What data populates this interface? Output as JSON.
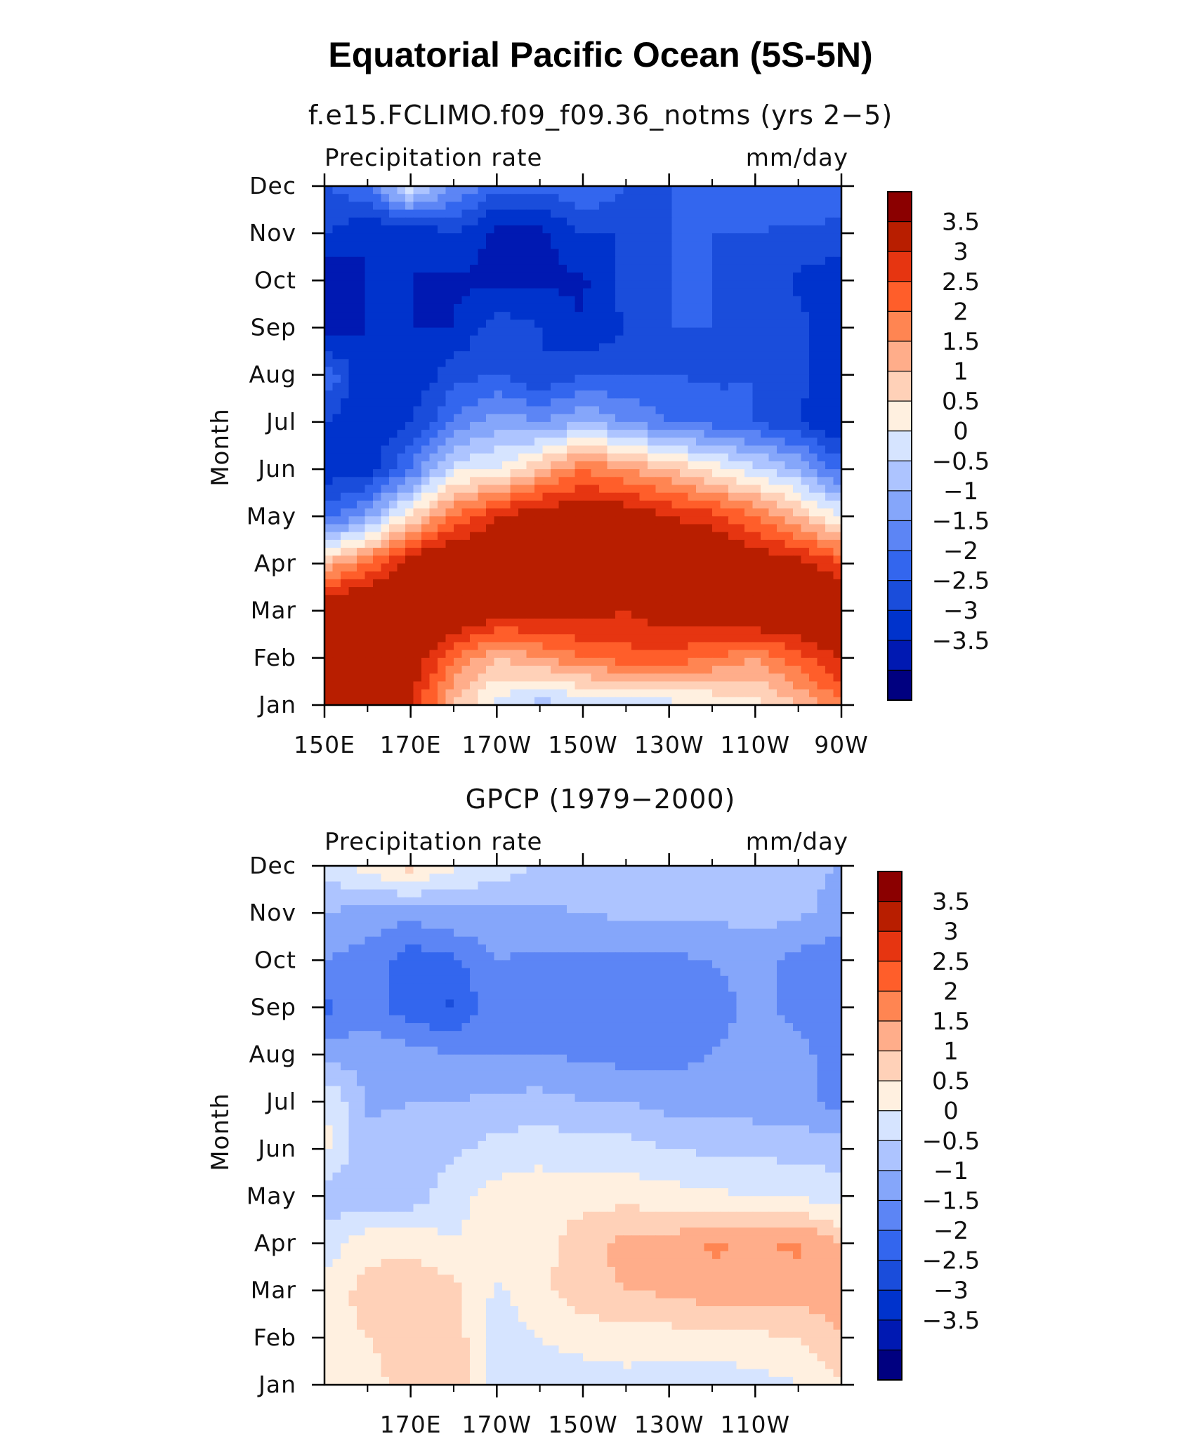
{
  "title": "Equatorial Pacific Ocean (5S-5N)",
  "palette": [
    "#000080",
    "#0019b2",
    "#0033cc",
    "#1a4ddb",
    "#3366ee",
    "#5c85f5",
    "#85a6fa",
    "#adc4ff",
    "#d6e4ff",
    "#fff0e0",
    "#ffd1b8",
    "#ffad8a",
    "#ff8552",
    "#ff5e2a",
    "#e63511",
    "#b81e00",
    "#8b0000"
  ],
  "chart_data": [
    {
      "type": "heatmap",
      "subtitle": "f.e15.FCLIMO.f09_f09.36_notms (yrs 2−5)",
      "left_label": "Precipitation rate",
      "right_label": "mm/day",
      "ylabel": "Month",
      "x_ticks": [
        "150E",
        "170E",
        "170W",
        "150W",
        "130W",
        "110W",
        "90W"
      ],
      "y_ticks": [
        "Jan",
        "Feb",
        "Mar",
        "Apr",
        "May",
        "Jun",
        "Jul",
        "Aug",
        "Sep",
        "Oct",
        "Nov",
        "Dec"
      ],
      "colorbar_labels": [
        "3.5",
        "3",
        "2.5",
        "2",
        "1.5",
        "1",
        "0.5",
        "0",
        "−0.5",
        "−1",
        "−1.5",
        "−2",
        "−2.5",
        "−3",
        "−3.5"
      ],
      "xlim": [
        "150E",
        "90W"
      ],
      "levels": [
        -3.5,
        -3,
        -2.5,
        -2,
        -1.5,
        -1,
        -0.5,
        0,
        0.5,
        1,
        1.5,
        2,
        2.5,
        3,
        3.5
      ],
      "lon": [
        150,
        160,
        170,
        180,
        190,
        200,
        210,
        220,
        230,
        240,
        250,
        260,
        270
      ],
      "values": [
        [
          4.5,
          4.5,
          3.5,
          1.5,
          0.3,
          -0.3,
          0.0,
          0.0,
          0.3,
          0.5,
          0.8,
          1.5,
          2.5
        ],
        [
          4.5,
          4.5,
          4.0,
          2.5,
          1.5,
          2.0,
          2.5,
          2.8,
          2.8,
          2.5,
          2.0,
          2.8,
          3.5
        ],
        [
          4.5,
          4.5,
          4.5,
          4.5,
          4.0,
          3.8,
          3.8,
          3.5,
          4.0,
          4.0,
          4.5,
          4.5,
          4.5
        ],
        [
          1.5,
          2.5,
          4.0,
          4.5,
          4.5,
          4.5,
          4.5,
          4.5,
          4.5,
          4.5,
          4.0,
          3.8,
          3.0
        ],
        [
          -1.8,
          -0.8,
          1.0,
          2.5,
          3.5,
          4.0,
          4.0,
          4.0,
          3.5,
          3.2,
          2.5,
          1.5,
          0.5
        ],
        [
          -2.8,
          -2.8,
          -1.5,
          0.3,
          0.5,
          1.5,
          2.5,
          2.0,
          1.5,
          0.8,
          0.2,
          -0.5,
          -1.8
        ],
        [
          -2.5,
          -3.0,
          -2.5,
          -1.5,
          -0.7,
          -1.0,
          -0.5,
          -1.0,
          -1.5,
          -1.7,
          -2.0,
          -2.5,
          -3.0
        ],
        [
          -1.5,
          -3.0,
          -3.0,
          -2.2,
          -2.0,
          -2.5,
          -2.0,
          -2.0,
          -2.0,
          -2.1,
          -2.0,
          -2.3,
          -3.0
        ],
        [
          -3.5,
          -3.0,
          -3.0,
          -3.0,
          -2.2,
          -2.5,
          -3.0,
          -2.5,
          -2.0,
          -2.0,
          -2.0,
          -2.3,
          -3.0
        ],
        [
          -3.5,
          -3.0,
          -3.0,
          -3.1,
          -3.1,
          -3.1,
          -3.1,
          -2.2,
          -2.0,
          -2.0,
          -2.1,
          -2.6,
          -2.8
        ],
        [
          -2.5,
          -3.0,
          -3.0,
          -2.5,
          -3.2,
          -3.2,
          -2.5,
          -2.5,
          -2.0,
          -2.0,
          -2.0,
          -2.1,
          -2.2
        ],
        [
          -2.0,
          -1.5,
          0.5,
          -1.0,
          -1.8,
          -1.8,
          -1.5,
          -2.0,
          -2.0,
          -2.0,
          -1.7,
          -1.5,
          -1.5
        ]
      ]
    },
    {
      "type": "heatmap",
      "subtitle": "GPCP (1979−2000)",
      "left_label": "Precipitation rate",
      "right_label": "mm/day",
      "ylabel": "Month",
      "x_ticks": [
        "170E",
        "170W",
        "150W",
        "130W",
        "110W"
      ],
      "y_ticks": [
        "Jan",
        "Feb",
        "Mar",
        "Apr",
        "May",
        "Jun",
        "Jul",
        "Aug",
        "Sep",
        "Oct",
        "Nov",
        "Dec"
      ],
      "colorbar_labels": [
        "3.5",
        "3",
        "2.5",
        "2",
        "1.5",
        "1",
        "0.5",
        "0",
        "−0.5",
        "−1",
        "−1.5",
        "−2",
        "−2.5",
        "−3",
        "−3.5"
      ],
      "xlim": [
        "150E",
        "90W"
      ],
      "levels": [
        -3.5,
        -3,
        -2.5,
        -2,
        -1.5,
        -1,
        -0.5,
        0,
        0.5,
        1,
        1.5,
        2,
        2.5,
        3,
        3.5
      ],
      "lon": [
        150,
        160,
        170,
        180,
        190,
        200,
        210,
        220,
        230,
        240,
        250,
        260,
        270
      ],
      "values": [
        [
          0.8,
          0.8,
          1.2,
          1.5,
          0.3,
          0.2,
          0.2,
          0.3,
          0.2,
          0.2,
          0.3,
          0.5,
          1.0
        ],
        [
          0.8,
          1.0,
          1.3,
          1.3,
          0.2,
          0.5,
          0.7,
          0.8,
          0.8,
          0.8,
          0.9,
          1.0,
          1.5
        ],
        [
          0.7,
          1.2,
          1.3,
          1.2,
          0.4,
          0.9,
          1.3,
          1.5,
          1.6,
          1.8,
          1.8,
          1.8,
          1.7
        ],
        [
          0.2,
          0.8,
          0.9,
          0.5,
          0.8,
          0.8,
          1.3,
          1.7,
          1.7,
          2.1,
          1.9,
          2.1,
          1.5
        ],
        [
          -0.3,
          -0.3,
          -0.3,
          0.3,
          0.7,
          0.8,
          0.8,
          0.8,
          0.7,
          0.6,
          0.5,
          0.4,
          0.2
        ],
        [
          0.6,
          -0.3,
          -0.3,
          -0.1,
          0.2,
          0.3,
          0.2,
          0.2,
          0.0,
          -0.1,
          -0.1,
          -0.2,
          -0.2
        ],
        [
          0.6,
          -0.6,
          -0.5,
          -0.5,
          -0.4,
          -0.3,
          -0.5,
          -0.5,
          -0.7,
          -0.7,
          -0.8,
          -0.8,
          -1.2
        ],
        [
          -0.8,
          -0.6,
          -0.8,
          -1.0,
          -1.0,
          -1.0,
          -1.1,
          -1.2,
          -1.2,
          -1.0,
          -0.8,
          -0.9,
          -1.2
        ],
        [
          -1.6,
          -1.3,
          -1.8,
          -2.1,
          -1.0,
          -1.2,
          -1.2,
          -1.2,
          -1.1,
          -1.2,
          -0.9,
          -1.1,
          -1.3
        ],
        [
          -1.0,
          -1.2,
          -1.8,
          -1.6,
          -1.0,
          -1.1,
          -1.1,
          -1.1,
          -1.1,
          -1.0,
          -0.8,
          -1.2,
          -1.4
        ],
        [
          -0.5,
          -0.7,
          -0.8,
          -0.6,
          -0.6,
          -0.6,
          -0.5,
          -0.4,
          -0.3,
          -0.4,
          -0.3,
          -0.4,
          -0.7
        ],
        [
          0.2,
          0.8,
          1.2,
          0.6,
          0.3,
          -0.1,
          -0.2,
          -0.3,
          -0.4,
          -0.4,
          -0.4,
          -0.4,
          -0.5
        ]
      ]
    }
  ]
}
